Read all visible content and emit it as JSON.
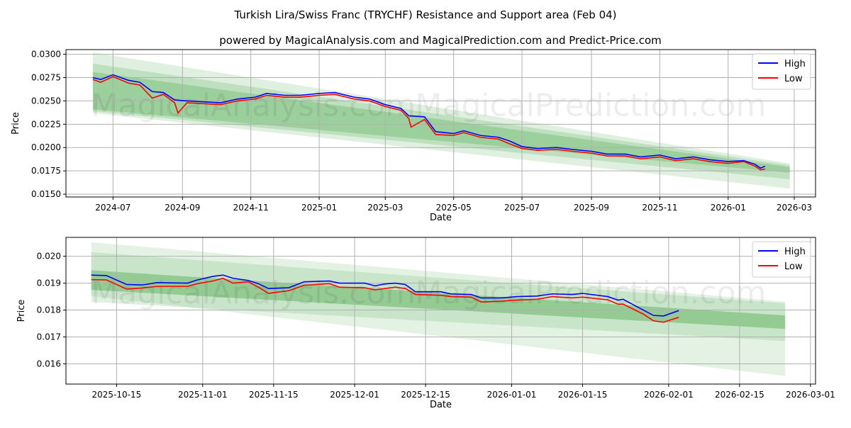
{
  "title": "Turkish Lira/Swiss Franc (TRYCHF) Resistance and Support area (Feb 04)",
  "subtitle": "powered by MagicalAnalysis.com and MagicalPrediction.com and Predict-Price.com",
  "watermark": [
    "MagicalAnalysis.com",
    "MagicalPrediction.com"
  ],
  "colors": {
    "high": "#0000ff",
    "low": "#ff0000",
    "band": "#2e9b2e"
  },
  "chart_data": [
    {
      "type": "line",
      "xlabel": "Date",
      "ylabel": "Price",
      "ylim": [
        0.0147,
        0.0305
      ],
      "xlim": [
        "2024-05-20",
        "2026-03-20"
      ],
      "yticks": [
        0.015,
        0.0175,
        0.02,
        0.0225,
        0.025,
        0.0275,
        0.03
      ],
      "ytick_labels": [
        "0.0150",
        "0.0175",
        "0.0200",
        "0.0225",
        "0.0250",
        "0.0275",
        "0.0300"
      ],
      "xticks": [
        "2024-07-01",
        "2024-09-01",
        "2024-11-01",
        "2025-01-01",
        "2025-03-01",
        "2025-05-01",
        "2025-07-01",
        "2025-09-01",
        "2025-11-01",
        "2026-01-01",
        "2026-03-01"
      ],
      "xtick_labels": [
        "2024-07",
        "2024-09",
        "2024-11",
        "2025-01",
        "2025-03",
        "2025-05",
        "2025-07",
        "2025-09",
        "2025-11",
        "2026-01",
        "2026-03"
      ],
      "legend": [
        "High",
        "Low"
      ],
      "legend_position": "top-right",
      "grid": true,
      "bands": [
        {
          "start": "2024-06-13",
          "end": "2026-02-25",
          "upper": [
            0.0302,
            0.0183
          ],
          "lower": [
            0.0237,
            0.0156
          ],
          "opacity": 0.15
        },
        {
          "start": "2024-06-13",
          "end": "2026-02-25",
          "upper": [
            0.029,
            0.0181
          ],
          "lower": [
            0.0239,
            0.0166
          ],
          "opacity": 0.18
        },
        {
          "start": "2024-06-13",
          "end": "2026-02-25",
          "upper": [
            0.0281,
            0.0179
          ],
          "lower": [
            0.0241,
            0.0173
          ],
          "opacity": 0.25
        }
      ],
      "series": [
        {
          "name": "High",
          "points": [
            [
              "2024-06-13",
              0.0275
            ],
            [
              "2024-06-20",
              0.0273
            ],
            [
              "2024-07-01",
              0.0278
            ],
            [
              "2024-07-15",
              0.0272
            ],
            [
              "2024-07-25",
              0.027
            ],
            [
              "2024-08-05",
              0.026
            ],
            [
              "2024-08-15",
              0.0259
            ],
            [
              "2024-08-25",
              0.0251
            ],
            [
              "2024-09-05",
              0.025
            ],
            [
              "2024-09-20",
              0.0249
            ],
            [
              "2024-10-05",
              0.0248
            ],
            [
              "2024-10-20",
              0.0252
            ],
            [
              "2024-11-05",
              0.0254
            ],
            [
              "2024-11-15",
              0.0258
            ],
            [
              "2024-12-01",
              0.0256
            ],
            [
              "2024-12-15",
              0.0256
            ],
            [
              "2025-01-01",
              0.0258
            ],
            [
              "2025-01-15",
              0.0259
            ],
            [
              "2025-02-01",
              0.0254
            ],
            [
              "2025-02-15",
              0.0252
            ],
            [
              "2025-03-01",
              0.0246
            ],
            [
              "2025-03-15",
              0.0242
            ],
            [
              "2025-03-22",
              0.0234
            ],
            [
              "2025-04-05",
              0.0233
            ],
            [
              "2025-04-10",
              0.0225
            ],
            [
              "2025-04-15",
              0.0217
            ],
            [
              "2025-05-01",
              0.0215
            ],
            [
              "2025-05-10",
              0.0218
            ],
            [
              "2025-05-25",
              0.0213
            ],
            [
              "2025-06-10",
              0.0211
            ],
            [
              "2025-06-20",
              0.0207
            ],
            [
              "2025-07-01",
              0.0201
            ],
            [
              "2025-07-15",
              0.0199
            ],
            [
              "2025-08-01",
              0.02
            ],
            [
              "2025-08-15",
              0.0198
            ],
            [
              "2025-09-01",
              0.0196
            ],
            [
              "2025-09-15",
              0.0193
            ],
            [
              "2025-10-01",
              0.0193
            ],
            [
              "2025-10-15",
              0.019
            ],
            [
              "2025-11-01",
              0.0192
            ],
            [
              "2025-11-15",
              0.0188
            ],
            [
              "2025-12-01",
              0.019
            ],
            [
              "2025-12-15",
              0.0187
            ],
            [
              "2026-01-01",
              0.0185
            ],
            [
              "2026-01-15",
              0.0186
            ],
            [
              "2026-01-25",
              0.0182
            ],
            [
              "2026-01-30",
              0.0178
            ],
            [
              "2026-02-03",
              0.018
            ]
          ]
        },
        {
          "name": "Low",
          "points": [
            [
              "2024-06-13",
              0.0273
            ],
            [
              "2024-06-20",
              0.027
            ],
            [
              "2024-07-01",
              0.0276
            ],
            [
              "2024-07-15",
              0.0269
            ],
            [
              "2024-07-25",
              0.0267
            ],
            [
              "2024-08-05",
              0.0253
            ],
            [
              "2024-08-15",
              0.0257
            ],
            [
              "2024-08-25",
              0.0248
            ],
            [
              "2024-08-28",
              0.0237
            ],
            [
              "2024-09-05",
              0.0248
            ],
            [
              "2024-09-20",
              0.0247
            ],
            [
              "2024-10-05",
              0.0246
            ],
            [
              "2024-10-20",
              0.025
            ],
            [
              "2024-11-05",
              0.0252
            ],
            [
              "2024-11-15",
              0.0256
            ],
            [
              "2024-12-01",
              0.0254
            ],
            [
              "2024-12-15",
              0.0254
            ],
            [
              "2025-01-01",
              0.0256
            ],
            [
              "2025-01-15",
              0.0257
            ],
            [
              "2025-02-01",
              0.0252
            ],
            [
              "2025-02-15",
              0.025
            ],
            [
              "2025-03-01",
              0.0244
            ],
            [
              "2025-03-15",
              0.024
            ],
            [
              "2025-03-22",
              0.0231
            ],
            [
              "2025-03-24",
              0.0222
            ],
            [
              "2025-04-05",
              0.023
            ],
            [
              "2025-04-10",
              0.0222
            ],
            [
              "2025-04-15",
              0.0214
            ],
            [
              "2025-05-01",
              0.0213
            ],
            [
              "2025-05-10",
              0.0216
            ],
            [
              "2025-05-25",
              0.0211
            ],
            [
              "2025-06-10",
              0.0209
            ],
            [
              "2025-06-20",
              0.0204
            ],
            [
              "2025-07-01",
              0.0199
            ],
            [
              "2025-07-15",
              0.0197
            ],
            [
              "2025-08-01",
              0.0198
            ],
            [
              "2025-08-15",
              0.0196
            ],
            [
              "2025-09-01",
              0.0194
            ],
            [
              "2025-09-15",
              0.0191
            ],
            [
              "2025-10-01",
              0.0191
            ],
            [
              "2025-10-15",
              0.0188
            ],
            [
              "2025-11-01",
              0.019
            ],
            [
              "2025-11-15",
              0.0186
            ],
            [
              "2025-12-01",
              0.0188
            ],
            [
              "2025-12-15",
              0.0185
            ],
            [
              "2026-01-01",
              0.0183
            ],
            [
              "2026-01-15",
              0.0185
            ],
            [
              "2026-01-25",
              0.018
            ],
            [
              "2026-01-30",
              0.0176
            ],
            [
              "2026-02-03",
              0.0177
            ]
          ]
        }
      ]
    },
    {
      "type": "line",
      "xlabel": "Date",
      "ylabel": "Price",
      "ylim": [
        0.01525,
        0.0207
      ],
      "xlim": [
        "2025-10-05",
        "2026-03-02"
      ],
      "yticks": [
        0.016,
        0.017,
        0.018,
        0.019,
        0.02
      ],
      "ytick_labels": [
        "0.016",
        "0.017",
        "0.018",
        "0.019",
        "0.020"
      ],
      "xticks": [
        "2025-10-15",
        "2025-11-01",
        "2025-11-15",
        "2025-12-01",
        "2025-12-15",
        "2026-01-01",
        "2026-01-15",
        "2026-02-01",
        "2026-02-15",
        "2026-03-01"
      ],
      "xtick_labels": [
        "2025-10-15",
        "2025-11-01",
        "2025-11-15",
        "2025-12-01",
        "2025-12-15",
        "2026-01-01",
        "2026-01-15",
        "2026-02-01",
        "2026-02-15",
        "2026-03-01"
      ],
      "legend": [
        "High",
        "Low"
      ],
      "legend_position": "top-right",
      "grid": true,
      "bands": [
        {
          "start": "2025-10-10",
          "end": "2026-02-24",
          "upper": [
            0.02052,
            0.01831
          ],
          "lower": [
            0.01852,
            0.01555
          ],
          "opacity": 0.13
        },
        {
          "start": "2025-10-10",
          "end": "2026-02-24",
          "upper": [
            0.02015,
            0.01825
          ],
          "lower": [
            0.0183,
            0.01685
          ],
          "opacity": 0.15
        },
        {
          "start": "2025-10-10",
          "end": "2026-02-24",
          "upper": [
            0.01948,
            0.0178
          ],
          "lower": [
            0.01875,
            0.0173
          ],
          "opacity": 0.35
        }
      ],
      "series": [
        {
          "name": "High",
          "points": [
            [
              "2025-10-10",
              0.0193
            ],
            [
              "2025-10-13",
              0.01928
            ],
            [
              "2025-10-17",
              0.01895
            ],
            [
              "2025-10-20",
              0.01893
            ],
            [
              "2025-10-23",
              0.01902
            ],
            [
              "2025-10-29",
              0.019
            ],
            [
              "2025-10-31",
              0.01912
            ],
            [
              "2025-11-03",
              0.01925
            ],
            [
              "2025-11-05",
              0.0193
            ],
            [
              "2025-11-07",
              0.01918
            ],
            [
              "2025-11-10",
              0.0191
            ],
            [
              "2025-11-12",
              0.01898
            ],
            [
              "2025-11-14",
              0.0188
            ],
            [
              "2025-11-18",
              0.01883
            ],
            [
              "2025-11-21",
              0.01905
            ],
            [
              "2025-11-26",
              0.01908
            ],
            [
              "2025-11-28",
              0.019
            ],
            [
              "2025-12-03",
              0.019
            ],
            [
              "2025-12-05",
              0.0189
            ],
            [
              "2025-12-07",
              0.01897
            ],
            [
              "2025-12-09",
              0.019
            ],
            [
              "2025-12-11",
              0.01895
            ],
            [
              "2025-12-13",
              0.01868
            ],
            [
              "2025-12-18",
              0.01868
            ],
            [
              "2025-12-20",
              0.0186
            ],
            [
              "2025-12-24",
              0.01858
            ],
            [
              "2025-12-26",
              0.01845
            ],
            [
              "2025-12-30",
              0.01845
            ],
            [
              "2026-01-02",
              0.0185
            ],
            [
              "2026-01-06",
              0.01852
            ],
            [
              "2026-01-09",
              0.0186
            ],
            [
              "2026-01-13",
              0.01858
            ],
            [
              "2026-01-15",
              0.01862
            ],
            [
              "2026-01-20",
              0.0185
            ],
            [
              "2026-01-22",
              0.01837
            ],
            [
              "2026-01-23",
              0.0184
            ],
            [
              "2026-01-27",
              0.018
            ],
            [
              "2026-01-29",
              0.0178
            ],
            [
              "2026-01-31",
              0.01778
            ],
            [
              "2026-02-03",
              0.01798
            ]
          ]
        },
        {
          "name": "Low",
          "points": [
            [
              "2025-10-10",
              0.01913
            ],
            [
              "2025-10-13",
              0.01912
            ],
            [
              "2025-10-17",
              0.01878
            ],
            [
              "2025-10-20",
              0.01882
            ],
            [
              "2025-10-23",
              0.01888
            ],
            [
              "2025-10-29",
              0.01888
            ],
            [
              "2025-10-31",
              0.01898
            ],
            [
              "2025-11-03",
              0.01908
            ],
            [
              "2025-11-05",
              0.01918
            ],
            [
              "2025-11-07",
              0.019
            ],
            [
              "2025-11-10",
              0.01905
            ],
            [
              "2025-11-12",
              0.01885
            ],
            [
              "2025-11-14",
              0.01862
            ],
            [
              "2025-11-18",
              0.01872
            ],
            [
              "2025-11-21",
              0.01892
            ],
            [
              "2025-11-26",
              0.01898
            ],
            [
              "2025-11-28",
              0.01885
            ],
            [
              "2025-12-03",
              0.01883
            ],
            [
              "2025-12-05",
              0.01875
            ],
            [
              "2025-12-07",
              0.0188
            ],
            [
              "2025-12-09",
              0.01885
            ],
            [
              "2025-12-11",
              0.0188
            ],
            [
              "2025-12-13",
              0.01858
            ],
            [
              "2025-12-18",
              0.01855
            ],
            [
              "2025-12-20",
              0.0185
            ],
            [
              "2025-12-24",
              0.01848
            ],
            [
              "2025-12-26",
              0.0183
            ],
            [
              "2025-12-30",
              0.01833
            ],
            [
              "2026-01-02",
              0.01837
            ],
            [
              "2026-01-06",
              0.0184
            ],
            [
              "2026-01-09",
              0.0185
            ],
            [
              "2026-01-13",
              0.01845
            ],
            [
              "2026-01-15",
              0.01848
            ],
            [
              "2026-01-20",
              0.01838
            ],
            [
              "2026-01-22",
              0.01822
            ],
            [
              "2026-01-23",
              0.01822
            ],
            [
              "2026-01-27",
              0.01785
            ],
            [
              "2026-01-29",
              0.0176
            ],
            [
              "2026-01-31",
              0.01755
            ],
            [
              "2026-02-03",
              0.01773
            ]
          ]
        }
      ]
    }
  ]
}
